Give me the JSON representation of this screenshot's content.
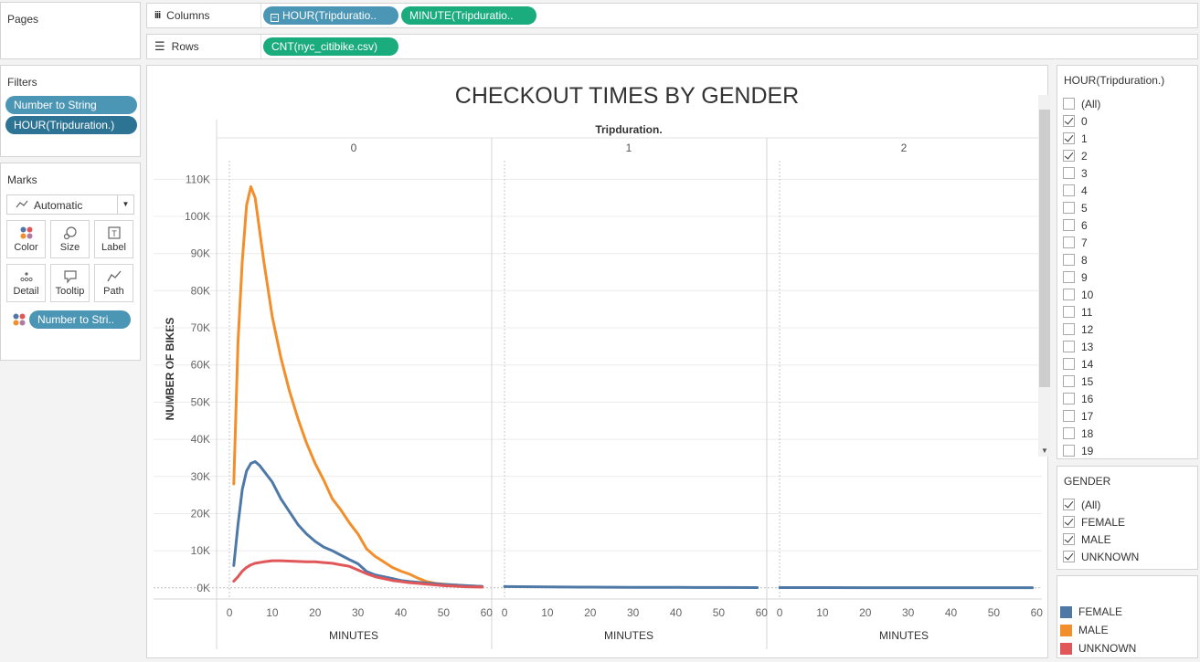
{
  "pages": {
    "title": "Pages"
  },
  "columns_shelf": {
    "label": "Columns",
    "pills": [
      "HOUR(Tripduratio..",
      "MINUTE(Tripduratio.."
    ]
  },
  "rows_shelf": {
    "label": "Rows",
    "pills": [
      "CNT(nyc_citibike.csv)"
    ]
  },
  "filters": {
    "title": "Filters",
    "pills": [
      "Number to String",
      "HOUR(Tripduration.)"
    ]
  },
  "marks": {
    "title": "Marks",
    "type_select": "Automatic",
    "buttons": [
      "Color",
      "Size",
      "Label",
      "Detail",
      "Tooltip",
      "Path"
    ],
    "color_pill": "Number to Stri.."
  },
  "hour_filter": {
    "title": "HOUR(Tripduration.)",
    "items": [
      {
        "label": "(All)",
        "checked": false
      },
      {
        "label": "0",
        "checked": true
      },
      {
        "label": "1",
        "checked": true
      },
      {
        "label": "2",
        "checked": true
      },
      {
        "label": "3",
        "checked": false
      },
      {
        "label": "4",
        "checked": false
      },
      {
        "label": "5",
        "checked": false
      },
      {
        "label": "6",
        "checked": false
      },
      {
        "label": "7",
        "checked": false
      },
      {
        "label": "8",
        "checked": false
      },
      {
        "label": "9",
        "checked": false
      },
      {
        "label": "10",
        "checked": false
      },
      {
        "label": "11",
        "checked": false
      },
      {
        "label": "12",
        "checked": false
      },
      {
        "label": "13",
        "checked": false
      },
      {
        "label": "14",
        "checked": false
      },
      {
        "label": "15",
        "checked": false
      },
      {
        "label": "16",
        "checked": false
      },
      {
        "label": "17",
        "checked": false
      },
      {
        "label": "18",
        "checked": false
      },
      {
        "label": "19",
        "checked": false
      }
    ]
  },
  "gender_filter": {
    "title": "GENDER",
    "items": [
      {
        "label": "(All)",
        "checked": true
      },
      {
        "label": "FEMALE",
        "checked": true
      },
      {
        "label": "MALE",
        "checked": true
      },
      {
        "label": "UNKNOWN",
        "checked": true
      }
    ]
  },
  "legend": {
    "items": [
      {
        "label": "FEMALE",
        "color": "#4e79a7"
      },
      {
        "label": "MALE",
        "color": "#f28e2b"
      },
      {
        "label": "UNKNOWN",
        "color": "#e15759"
      }
    ]
  },
  "chart_data": {
    "type": "line",
    "title": "CHECKOUT TIMES BY GENDER",
    "header": "Tripduration.",
    "panels": [
      "0",
      "1",
      "2"
    ],
    "xlabel": "MINUTES",
    "ylabel": "NUMBER OF BIKES",
    "xlim": [
      -3,
      61
    ],
    "ylim": [
      -3000,
      115000
    ],
    "xticks": [
      0,
      10,
      20,
      30,
      40,
      50,
      60
    ],
    "yticks": [
      0,
      10000,
      20000,
      30000,
      40000,
      50000,
      60000,
      70000,
      80000,
      90000,
      100000,
      110000
    ],
    "ytick_labels": [
      "0K",
      "10K",
      "20K",
      "30K",
      "40K",
      "50K",
      "60K",
      "70K",
      "80K",
      "90K",
      "100K",
      "110K"
    ],
    "grid": true,
    "series": [
      {
        "name": "MALE",
        "panel": 0,
        "color": "#f28e2b",
        "x": [
          1,
          2,
          3,
          4,
          5,
          6,
          8,
          10,
          12,
          14,
          16,
          18,
          20,
          22,
          24,
          26,
          28,
          30,
          32,
          34,
          36,
          38,
          40,
          42,
          44,
          46,
          48,
          50,
          52,
          55,
          59
        ],
        "y": [
          28000,
          66000,
          88000,
          103000,
          108000,
          105000,
          88000,
          73000,
          62000,
          53000,
          45500,
          39000,
          33500,
          29000,
          24000,
          21000,
          17500,
          14500,
          10500,
          8500,
          7000,
          5500,
          4500,
          3700,
          2600,
          1700,
          1200,
          1000,
          800,
          600,
          400
        ]
      },
      {
        "name": "FEMALE",
        "panel": 0,
        "color": "#4e79a7",
        "x": [
          1,
          2,
          3,
          4,
          5,
          6,
          7,
          8,
          10,
          12,
          14,
          16,
          18,
          20,
          22,
          24,
          26,
          28,
          30,
          32,
          34,
          36,
          38,
          40,
          42,
          44,
          46,
          48,
          50,
          52,
          55,
          59
        ],
        "y": [
          6000,
          17000,
          26500,
          31500,
          33500,
          34000,
          33000,
          31500,
          28500,
          24000,
          20500,
          17000,
          14500,
          12500,
          11000,
          10000,
          8800,
          7600,
          6500,
          4400,
          3500,
          3000,
          2500,
          2000,
          1700,
          1500,
          1300,
          1100,
          900,
          800,
          600,
          400
        ]
      },
      {
        "name": "UNKNOWN",
        "panel": 0,
        "color": "#e15759",
        "x": [
          1,
          2,
          3,
          4,
          5,
          6,
          8,
          10,
          12,
          14,
          16,
          18,
          20,
          22,
          24,
          26,
          28,
          30,
          32,
          34,
          36,
          38,
          40,
          42,
          44,
          46,
          48,
          50,
          52,
          55,
          59
        ],
        "y": [
          1800,
          3000,
          4500,
          5500,
          6200,
          6600,
          7000,
          7300,
          7300,
          7200,
          7100,
          7000,
          7000,
          6800,
          6600,
          6200,
          5800,
          4800,
          3800,
          3000,
          2500,
          2000,
          1700,
          1400,
          1200,
          1000,
          800,
          600,
          500,
          300,
          200
        ]
      },
      {
        "name": "FEMALE",
        "panel": 1,
        "color": "#4e79a7",
        "x": [
          0,
          10,
          20,
          30,
          40,
          50,
          59
        ],
        "y": [
          350,
          250,
          200,
          150,
          120,
          100,
          80
        ]
      },
      {
        "name": "FEMALE",
        "panel": 2,
        "color": "#4e79a7",
        "x": [
          0,
          10,
          20,
          30,
          40,
          50,
          59
        ],
        "y": [
          80,
          70,
          60,
          55,
          50,
          45,
          40
        ]
      }
    ]
  }
}
